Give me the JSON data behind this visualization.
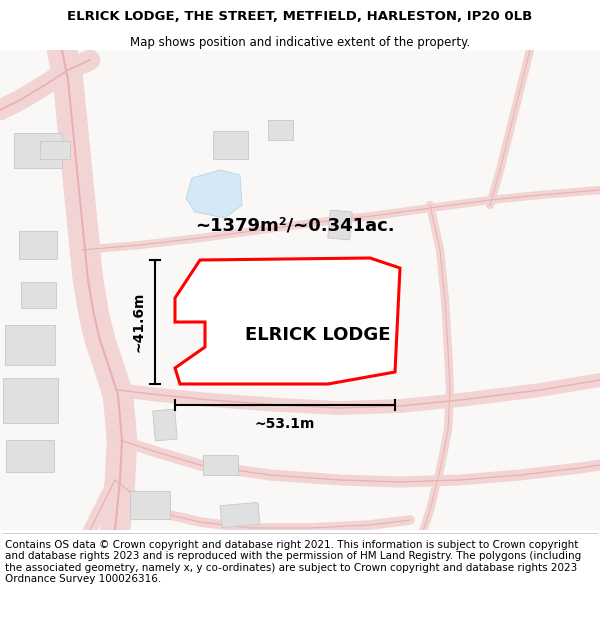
{
  "title_line1": "ELRICK LODGE, THE STREET, METFIELD, HARLESTON, IP20 0LB",
  "title_line2": "Map shows position and indicative extent of the property.",
  "footer_text": "Contains OS data © Crown copyright and database right 2021. This information is subject to Crown copyright and database rights 2023 and is reproduced with the permission of HM Land Registry. The polygons (including the associated geometry, namely x, y co-ordinates) are subject to Crown copyright and database rights 2023 Ordnance Survey 100026316.",
  "property_label": "ELRICK LODGE",
  "area_label": "~1379m²/~0.341ac.",
  "width_label": "~53.1m",
  "height_label": "~41.6m",
  "bg_color": "#ffffff",
  "map_bg": "#f9f8f7",
  "road_fill": "#f2d4d4",
  "road_edge": "#e8b0b0",
  "plot_fill": "#ffffff",
  "plot_edge": "#ff0000",
  "building_fill": "#e0e0e0",
  "building_edge": "#c8c8c8",
  "water_fill": "#d4e8f5",
  "water_edge": "#b8d4e8",
  "title_fontsize": 9.5,
  "footer_fontsize": 7.5
}
